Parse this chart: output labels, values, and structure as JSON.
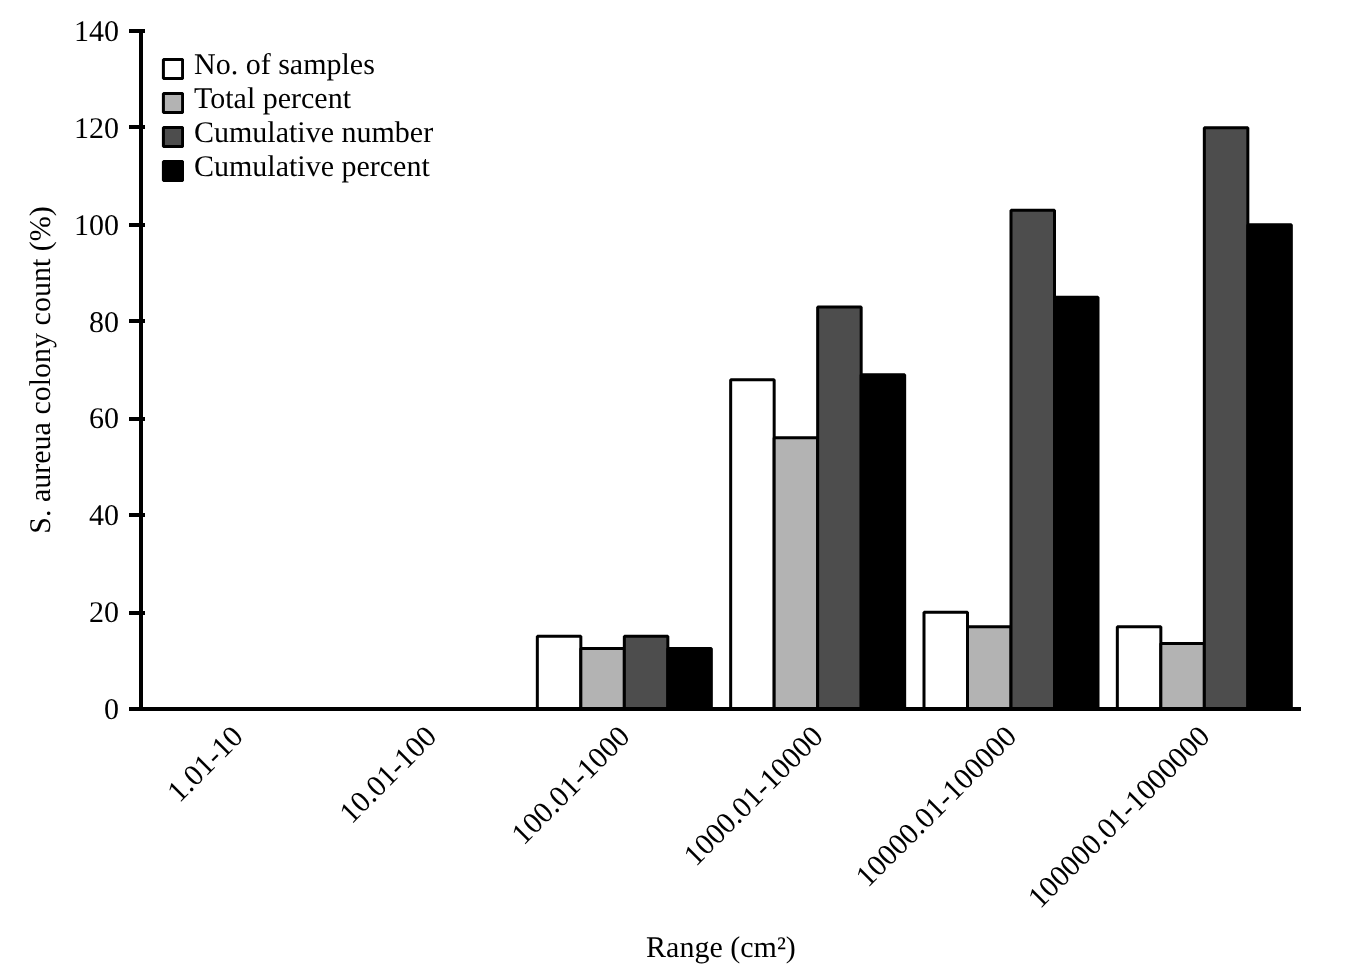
{
  "chart_data": {
    "type": "bar",
    "xlabel": "Range (cm²)",
    "ylabel": "S. aureua colony count (%)",
    "categories": [
      "1.01-10",
      "10.01-100",
      "100.01-1000",
      "1000.01-10000",
      "10000.01-100000",
      "100000.01-1000000"
    ],
    "series": [
      {
        "name": "No. of samples",
        "color": "#ffffff",
        "values": [
          0,
          0,
          15,
          68,
          20,
          17
        ]
      },
      {
        "name": "Total percent",
        "color": "#b3b3b3",
        "values": [
          0,
          0,
          12.5,
          56,
          17,
          13.5
        ]
      },
      {
        "name": "Cumulative number",
        "color": "#4d4d4d",
        "values": [
          0,
          0,
          15,
          83,
          103,
          120
        ]
      },
      {
        "name": "Cumulative percent",
        "color": "#000000",
        "values": [
          0,
          0,
          12.5,
          69,
          85,
          100
        ]
      }
    ],
    "ylim": [
      0,
      140
    ],
    "yticks": [
      0,
      20,
      40,
      60,
      80,
      100,
      120,
      140
    ],
    "grid": false,
    "legend": "top left"
  }
}
